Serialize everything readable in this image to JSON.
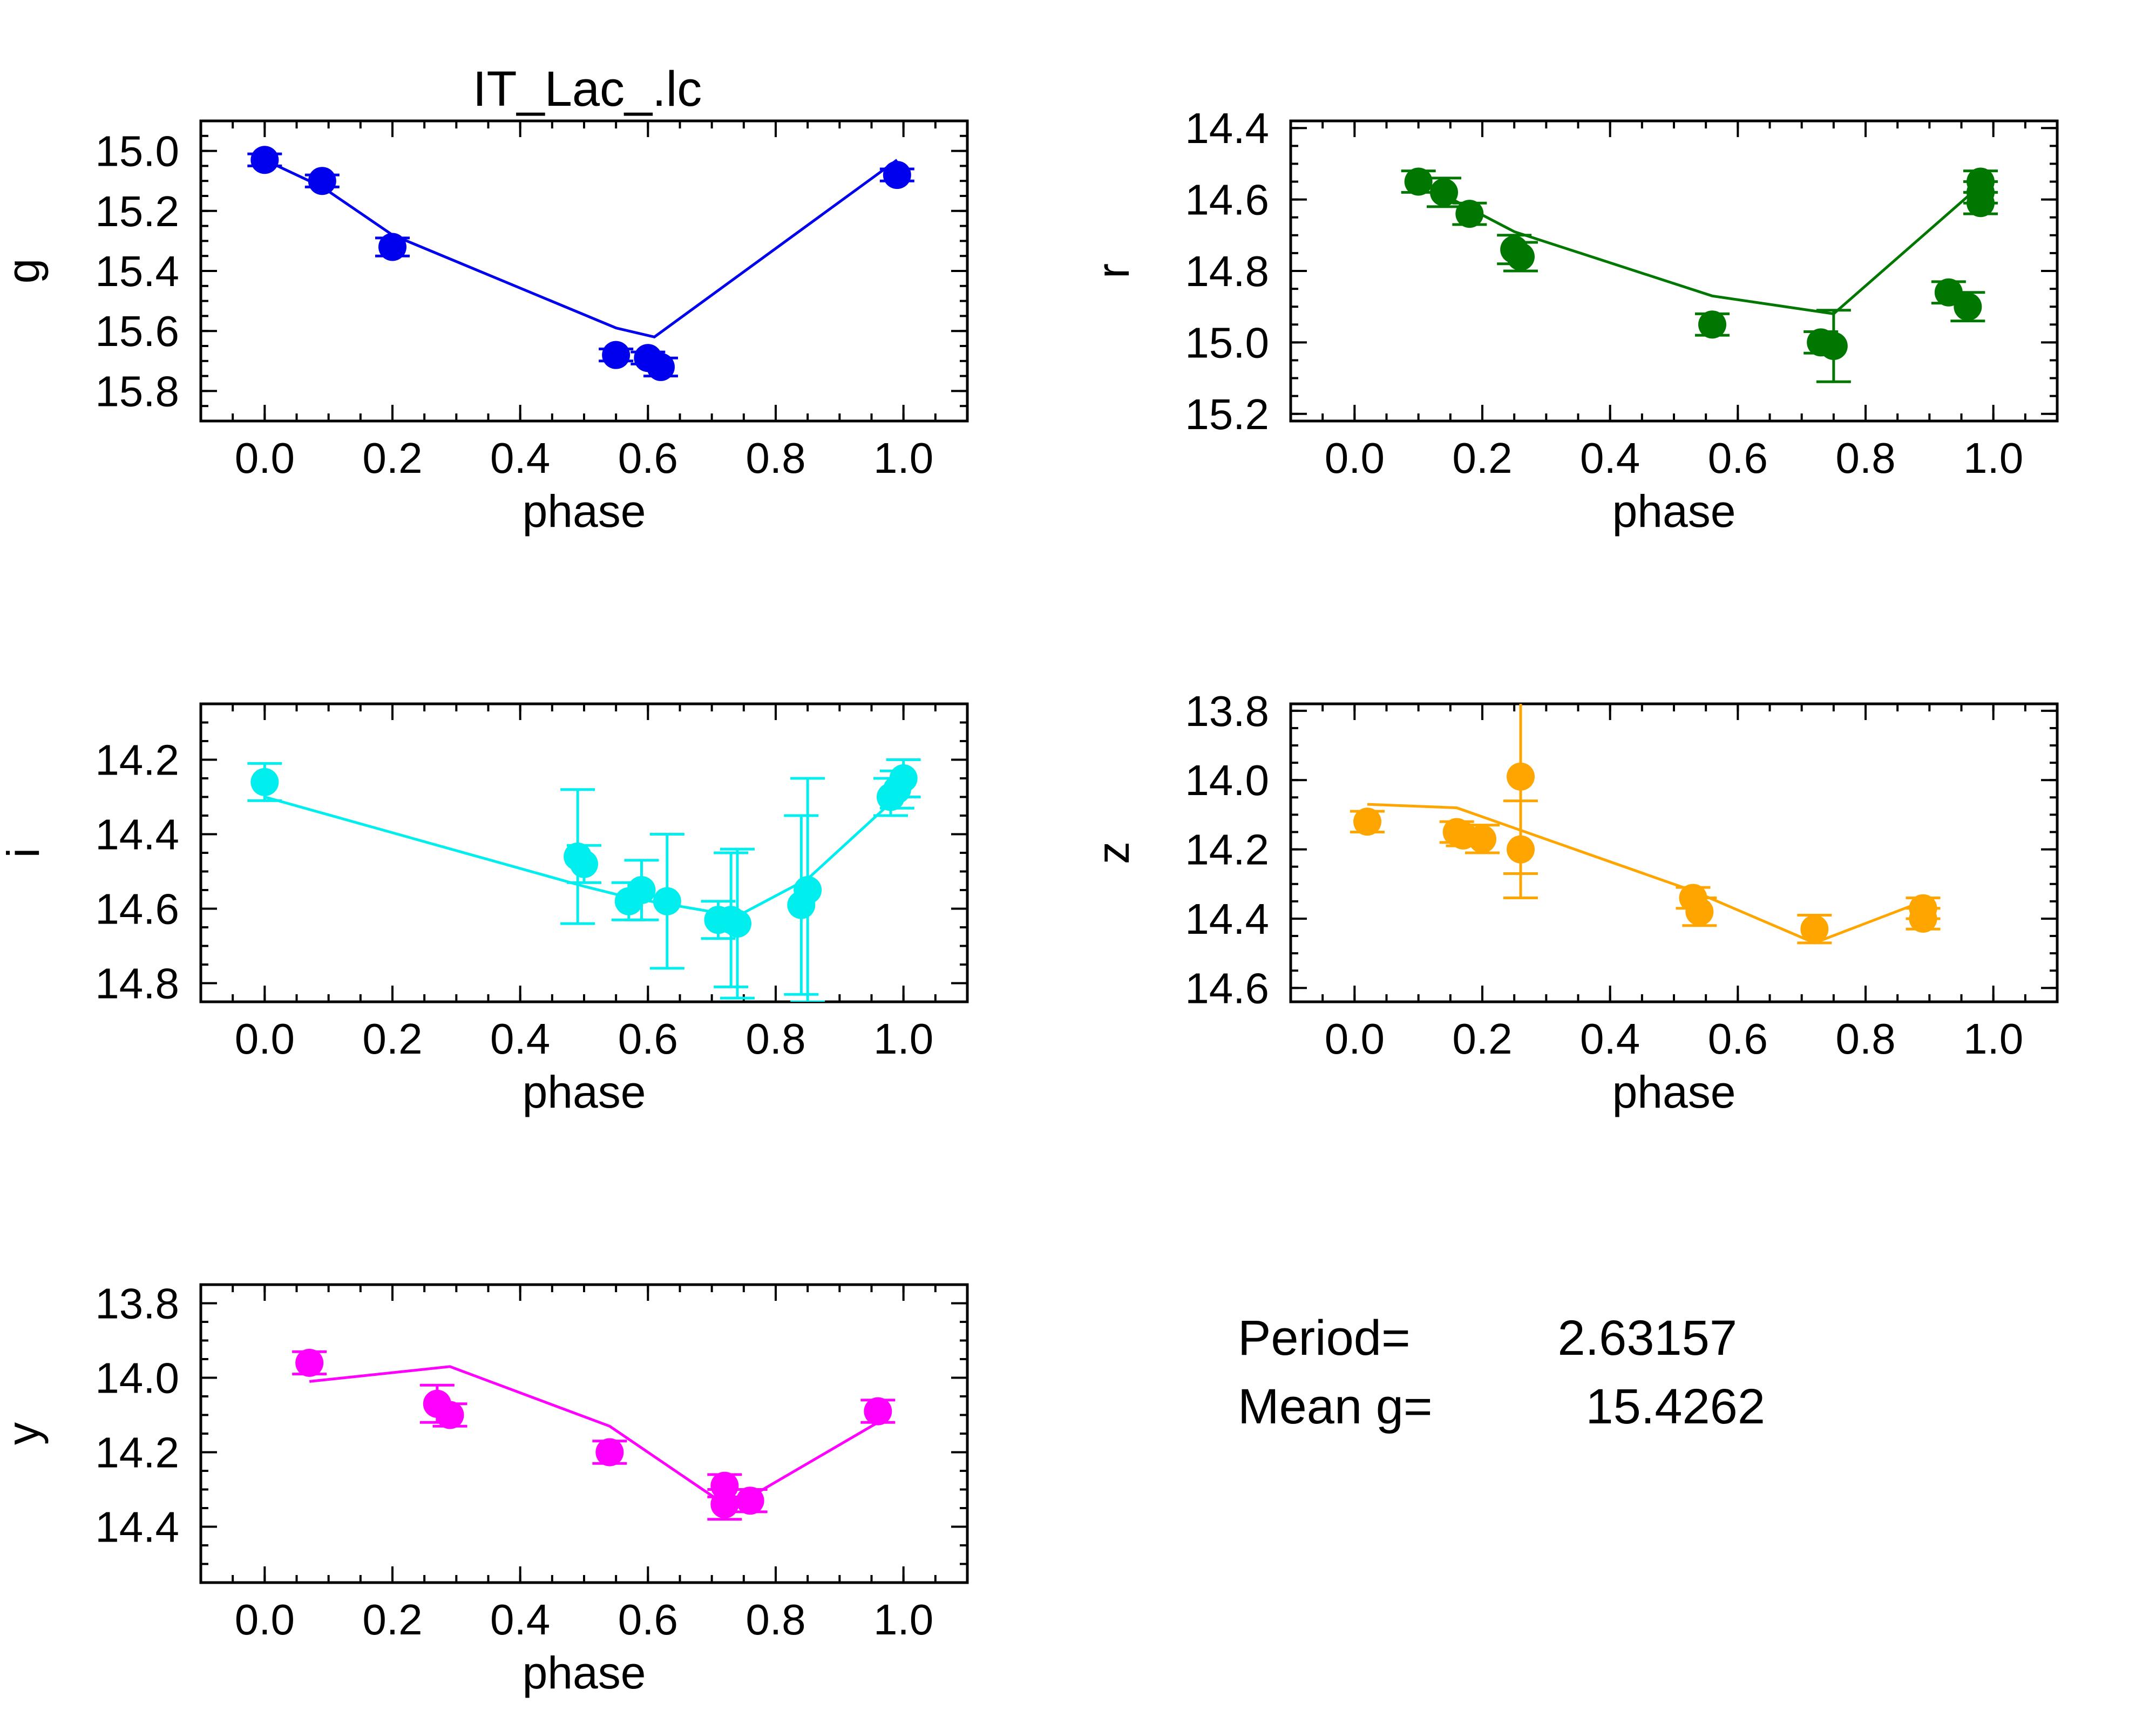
{
  "title": "IT_Lac_.lc",
  "info": {
    "period_label": "Period=",
    "period_value": "2.63157",
    "mean_label": "Mean g=",
    "mean_value": "15.4262"
  },
  "chart_data": [
    {
      "type": "scatter",
      "band": "g",
      "ylabel": "g",
      "xlabel": "phase",
      "color": "#0000ee",
      "xlim": [
        -0.1,
        1.1
      ],
      "ylim": [
        15.9,
        14.9
      ],
      "yticks": [
        "15.0",
        "15.2",
        "15.4",
        "15.6",
        "15.8"
      ],
      "ytick_values": [
        15.0,
        15.2,
        15.4,
        15.6,
        15.8
      ],
      "xticks": [
        "0.0",
        "0.2",
        "0.4",
        "0.6",
        "0.8",
        "1.0"
      ],
      "xtick_values": [
        0.0,
        0.2,
        0.4,
        0.6,
        0.8,
        1.0
      ],
      "points": [
        {
          "x": 0.0,
          "y": 15.03,
          "err": 0.02
        },
        {
          "x": 0.09,
          "y": 15.1,
          "err": 0.02
        },
        {
          "x": 0.2,
          "y": 15.32,
          "err": 0.03
        },
        {
          "x": 0.55,
          "y": 15.68,
          "err": 0.02
        },
        {
          "x": 0.6,
          "y": 15.69,
          "err": 0.02
        },
        {
          "x": 0.62,
          "y": 15.72,
          "err": 0.03
        },
        {
          "x": 0.99,
          "y": 15.08,
          "err": 0.02
        }
      ],
      "model": [
        {
          "x": 0.0,
          "y": 15.03
        },
        {
          "x": 0.09,
          "y": 15.12
        },
        {
          "x": 0.2,
          "y": 15.28
        },
        {
          "x": 0.55,
          "y": 15.59
        },
        {
          "x": 0.61,
          "y": 15.62
        },
        {
          "x": 0.99,
          "y": 15.03
        }
      ]
    },
    {
      "type": "scatter",
      "band": "r",
      "ylabel": "r",
      "xlabel": "phase",
      "color": "#007700",
      "xlim": [
        -0.1,
        1.1
      ],
      "ylim": [
        15.22,
        14.38
      ],
      "yticks": [
        "14.4",
        "14.6",
        "14.8",
        "15.0",
        "15.2"
      ],
      "ytick_values": [
        14.4,
        14.6,
        14.8,
        15.0,
        15.2
      ],
      "xticks": [
        "0.0",
        "0.2",
        "0.4",
        "0.6",
        "0.8",
        "1.0"
      ],
      "xtick_values": [
        0.0,
        0.2,
        0.4,
        0.6,
        0.8,
        1.0
      ],
      "points": [
        {
          "x": 0.1,
          "y": 14.55,
          "err": 0.03
        },
        {
          "x": 0.14,
          "y": 14.58,
          "err": 0.04
        },
        {
          "x": 0.18,
          "y": 14.64,
          "err": 0.03
        },
        {
          "x": 0.25,
          "y": 14.74,
          "err": 0.04
        },
        {
          "x": 0.26,
          "y": 14.76,
          "err": 0.04
        },
        {
          "x": 0.56,
          "y": 14.95,
          "err": 0.03
        },
        {
          "x": 0.73,
          "y": 15.0,
          "err": 0.03
        },
        {
          "x": 0.75,
          "y": 15.01,
          "err": 0.1
        },
        {
          "x": 0.93,
          "y": 14.86,
          "err": 0.03
        },
        {
          "x": 0.96,
          "y": 14.9,
          "err": 0.04
        },
        {
          "x": 0.98,
          "y": 14.55,
          "err": 0.03
        },
        {
          "x": 0.98,
          "y": 14.58,
          "err": 0.03
        },
        {
          "x": 0.98,
          "y": 14.61,
          "err": 0.03
        }
      ],
      "model": [
        {
          "x": 0.1,
          "y": 14.55
        },
        {
          "x": 0.25,
          "y": 14.69
        },
        {
          "x": 0.56,
          "y": 14.87
        },
        {
          "x": 0.75,
          "y": 14.92
        },
        {
          "x": 0.98,
          "y": 14.56
        }
      ]
    },
    {
      "type": "scatter",
      "band": "i",
      "ylabel": "i",
      "xlabel": "phase",
      "color": "#00eeee",
      "xlim": [
        -0.1,
        1.1
      ],
      "ylim": [
        14.85,
        14.05
      ],
      "yticks": [
        "14.2",
        "14.4",
        "14.6",
        "14.8"
      ],
      "ytick_values": [
        14.2,
        14.4,
        14.6,
        14.8
      ],
      "xticks": [
        "0.0",
        "0.2",
        "0.4",
        "0.6",
        "0.8",
        "1.0"
      ],
      "xtick_values": [
        0.0,
        0.2,
        0.4,
        0.6,
        0.8,
        1.0
      ],
      "points": [
        {
          "x": 0.0,
          "y": 14.26,
          "err": 0.05
        },
        {
          "x": 0.49,
          "y": 14.46,
          "err": 0.18
        },
        {
          "x": 0.5,
          "y": 14.48,
          "err": 0.05
        },
        {
          "x": 0.57,
          "y": 14.58,
          "err": 0.05
        },
        {
          "x": 0.59,
          "y": 14.55,
          "err": 0.08
        },
        {
          "x": 0.63,
          "y": 14.58,
          "err": 0.18
        },
        {
          "x": 0.71,
          "y": 14.63,
          "err": 0.05
        },
        {
          "x": 0.73,
          "y": 14.63,
          "err": 0.18
        },
        {
          "x": 0.74,
          "y": 14.64,
          "err": 0.2
        },
        {
          "x": 0.84,
          "y": 14.59,
          "err": 0.24
        },
        {
          "x": 0.85,
          "y": 14.55,
          "err": 0.3
        },
        {
          "x": 0.98,
          "y": 14.3,
          "err": 0.05
        },
        {
          "x": 0.99,
          "y": 14.28,
          "err": 0.05
        },
        {
          "x": 1.0,
          "y": 14.25,
          "err": 0.05
        }
      ],
      "model": [
        {
          "x": 0.0,
          "y": 14.3
        },
        {
          "x": 0.5,
          "y": 14.54
        },
        {
          "x": 0.57,
          "y": 14.57
        },
        {
          "x": 0.74,
          "y": 14.62
        },
        {
          "x": 0.85,
          "y": 14.52
        },
        {
          "x": 0.99,
          "y": 14.3
        }
      ]
    },
    {
      "type": "scatter",
      "band": "z",
      "ylabel": "z",
      "xlabel": "phase",
      "color": "#ffa500",
      "xlim": [
        -0.1,
        1.1
      ],
      "ylim": [
        14.64,
        13.78
      ],
      "yticks": [
        "13.8",
        "14.0",
        "14.2",
        "14.4",
        "14.6"
      ],
      "ytick_values": [
        13.8,
        14.0,
        14.2,
        14.4,
        14.6
      ],
      "xticks": [
        "0.0",
        "0.2",
        "0.4",
        "0.6",
        "0.8",
        "1.0"
      ],
      "xtick_values": [
        0.0,
        0.2,
        0.4,
        0.6,
        0.8,
        1.0
      ],
      "points": [
        {
          "x": 0.02,
          "y": 14.12,
          "err": 0.03
        },
        {
          "x": 0.16,
          "y": 14.15,
          "err": 0.03
        },
        {
          "x": 0.17,
          "y": 14.16,
          "err": 0.03
        },
        {
          "x": 0.2,
          "y": 14.17,
          "err": 0.04
        },
        {
          "x": 0.26,
          "y": 13.99,
          "err": 0.28
        },
        {
          "x": 0.26,
          "y": 14.2,
          "err": 0.14
        },
        {
          "x": 0.53,
          "y": 14.34,
          "err": 0.03
        },
        {
          "x": 0.54,
          "y": 14.38,
          "err": 0.04
        },
        {
          "x": 0.72,
          "y": 14.43,
          "err": 0.04
        },
        {
          "x": 0.89,
          "y": 14.37,
          "err": 0.03
        },
        {
          "x": 0.89,
          "y": 14.4,
          "err": 0.03
        }
      ],
      "model": [
        {
          "x": 0.02,
          "y": 14.07
        },
        {
          "x": 0.16,
          "y": 14.08
        },
        {
          "x": 0.53,
          "y": 14.32
        },
        {
          "x": 0.72,
          "y": 14.47
        },
        {
          "x": 0.89,
          "y": 14.35
        }
      ]
    },
    {
      "type": "scatter",
      "band": "y",
      "ylabel": "y",
      "xlabel": "phase",
      "color": "#ff00ff",
      "xlim": [
        -0.1,
        1.1
      ],
      "ylim": [
        14.55,
        13.75
      ],
      "yticks": [
        "13.8",
        "14.0",
        "14.2",
        "14.4"
      ],
      "ytick_values": [
        13.8,
        14.0,
        14.2,
        14.4
      ],
      "xticks": [
        "0.0",
        "0.2",
        "0.4",
        "0.6",
        "0.8",
        "1.0"
      ],
      "xtick_values": [
        0.0,
        0.2,
        0.4,
        0.6,
        0.8,
        1.0
      ],
      "points": [
        {
          "x": 0.07,
          "y": 13.96,
          "err": 0.03
        },
        {
          "x": 0.27,
          "y": 14.07,
          "err": 0.05
        },
        {
          "x": 0.29,
          "y": 14.1,
          "err": 0.03
        },
        {
          "x": 0.54,
          "y": 14.2,
          "err": 0.03
        },
        {
          "x": 0.72,
          "y": 14.29,
          "err": 0.03
        },
        {
          "x": 0.72,
          "y": 14.34,
          "err": 0.04
        },
        {
          "x": 0.76,
          "y": 14.33,
          "err": 0.03
        },
        {
          "x": 0.96,
          "y": 14.09,
          "err": 0.03
        }
      ],
      "model": [
        {
          "x": 0.07,
          "y": 14.01
        },
        {
          "x": 0.29,
          "y": 13.97
        },
        {
          "x": 0.54,
          "y": 14.13
        },
        {
          "x": 0.72,
          "y": 14.34
        },
        {
          "x": 0.76,
          "y": 14.32
        },
        {
          "x": 0.96,
          "y": 14.12
        }
      ]
    }
  ]
}
